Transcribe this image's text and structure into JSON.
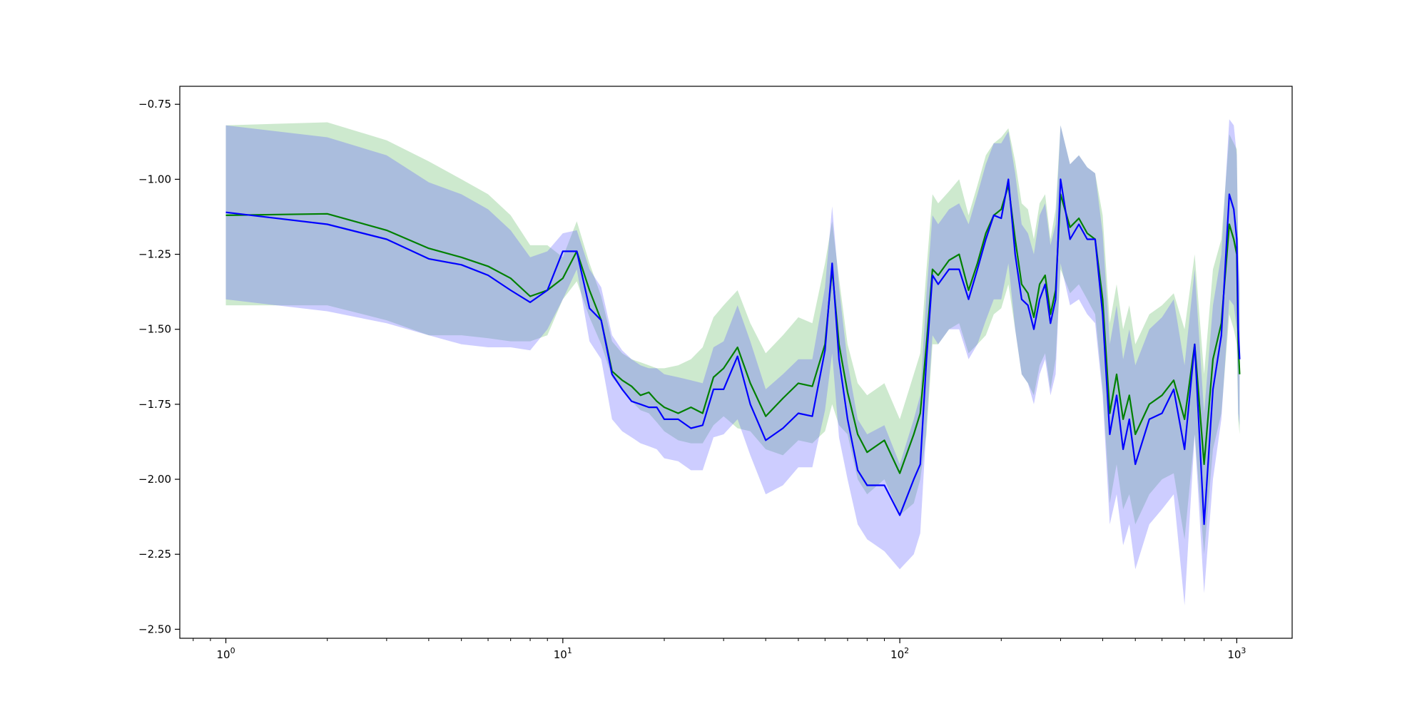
{
  "chart_data": {
    "type": "line",
    "title": "",
    "xlabel": "",
    "ylabel": "",
    "xscale": "log",
    "xlim": [
      0.73,
      1460
    ],
    "ylim": [
      -2.53,
      -0.69
    ],
    "grid": false,
    "legend": "none",
    "x_ticks": [
      {
        "value": 1,
        "base": "10",
        "exp": "0"
      },
      {
        "value": 10,
        "base": "10",
        "exp": "1"
      },
      {
        "value": 100,
        "base": "10",
        "exp": "2"
      },
      {
        "value": 1000,
        "base": "10",
        "exp": "3"
      }
    ],
    "y_ticks": [
      {
        "value": -0.75,
        "label": "−0.75"
      },
      {
        "value": -1.0,
        "label": "−1.00"
      },
      {
        "value": -1.25,
        "label": "−1.25"
      },
      {
        "value": -1.5,
        "label": "−1.50"
      },
      {
        "value": -1.75,
        "label": "−1.75"
      },
      {
        "value": -2.0,
        "label": "−2.00"
      },
      {
        "value": -2.25,
        "label": "−2.25"
      },
      {
        "value": -2.5,
        "label": "−2.50"
      }
    ],
    "series": [
      {
        "color": "#008000",
        "band_color": "#4caf50",
        "band_opacity": 0.28,
        "x": [
          1,
          2,
          3,
          4,
          5,
          6,
          7,
          8,
          9,
          10,
          11,
          12,
          13,
          14,
          15,
          16,
          17,
          18,
          19,
          20,
          22,
          24,
          26,
          28,
          30,
          33,
          36,
          40,
          45,
          50,
          55,
          60,
          63,
          66,
          70,
          75,
          80,
          90,
          100,
          110,
          115,
          120,
          125,
          130,
          140,
          150,
          160,
          170,
          180,
          190,
          200,
          210,
          220,
          230,
          240,
          250,
          260,
          270,
          280,
          290,
          300,
          320,
          340,
          360,
          380,
          400,
          420,
          440,
          460,
          480,
          500,
          550,
          600,
          650,
          700,
          750,
          800,
          850,
          900,
          950,
          980,
          1000,
          1010,
          1020
        ],
        "y": [
          -1.12,
          -1.115,
          -1.17,
          -1.23,
          -1.26,
          -1.29,
          -1.33,
          -1.39,
          -1.37,
          -1.33,
          -1.24,
          -1.37,
          -1.47,
          -1.64,
          -1.67,
          -1.69,
          -1.72,
          -1.71,
          -1.74,
          -1.76,
          -1.78,
          -1.76,
          -1.78,
          -1.66,
          -1.63,
          -1.56,
          -1.68,
          -1.79,
          -1.73,
          -1.68,
          -1.69,
          -1.55,
          -1.3,
          -1.55,
          -1.71,
          -1.85,
          -1.91,
          -1.87,
          -1.98,
          -1.85,
          -1.78,
          -1.55,
          -1.3,
          -1.32,
          -1.27,
          -1.25,
          -1.37,
          -1.28,
          -1.18,
          -1.12,
          -1.1,
          -1.02,
          -1.2,
          -1.35,
          -1.38,
          -1.46,
          -1.35,
          -1.32,
          -1.45,
          -1.37,
          -1.05,
          -1.16,
          -1.13,
          -1.18,
          -1.2,
          -1.4,
          -1.78,
          -1.65,
          -1.8,
          -1.72,
          -1.85,
          -1.75,
          -1.72,
          -1.67,
          -1.8,
          -1.55,
          -1.95,
          -1.6,
          -1.48,
          -1.15,
          -1.2,
          -1.25,
          -1.55,
          -1.65
        ],
        "lower": [
          -1.42,
          -1.42,
          -1.47,
          -1.52,
          -1.52,
          -1.53,
          -1.54,
          -1.54,
          -1.52,
          -1.4,
          -1.34,
          -1.46,
          -1.55,
          -1.66,
          -1.7,
          -1.74,
          -1.77,
          -1.78,
          -1.81,
          -1.84,
          -1.87,
          -1.88,
          -1.88,
          -1.82,
          -1.79,
          -1.83,
          -1.84,
          -1.9,
          -1.92,
          -1.87,
          -1.88,
          -1.84,
          -1.75,
          -1.82,
          -1.85,
          -2.0,
          -2.05,
          -2.0,
          -2.12,
          -2.08,
          -2.0,
          -1.85,
          -1.55,
          -1.55,
          -1.5,
          -1.48,
          -1.58,
          -1.55,
          -1.52,
          -1.45,
          -1.43,
          -1.35,
          -1.5,
          -1.65,
          -1.68,
          -1.72,
          -1.62,
          -1.58,
          -1.7,
          -1.6,
          -1.3,
          -1.38,
          -1.35,
          -1.4,
          -1.45,
          -1.7,
          -2.08,
          -1.95,
          -2.1,
          -2.05,
          -2.15,
          -2.05,
          -2.0,
          -1.98,
          -2.2,
          -1.85,
          -2.25,
          -1.9,
          -1.78,
          -1.45,
          -1.5,
          -1.55,
          -1.8,
          -1.85
        ],
        "upper": [
          -0.82,
          -0.81,
          -0.87,
          -0.94,
          -1.0,
          -1.05,
          -1.12,
          -1.22,
          -1.22,
          -1.26,
          -1.14,
          -1.28,
          -1.39,
          -1.54,
          -1.58,
          -1.6,
          -1.61,
          -1.62,
          -1.63,
          -1.63,
          -1.62,
          -1.6,
          -1.56,
          -1.46,
          -1.42,
          -1.37,
          -1.48,
          -1.58,
          -1.52,
          -1.46,
          -1.48,
          -1.28,
          -1.14,
          -1.33,
          -1.55,
          -1.68,
          -1.72,
          -1.68,
          -1.8,
          -1.65,
          -1.58,
          -1.3,
          -1.05,
          -1.08,
          -1.04,
          -1.0,
          -1.12,
          -1.02,
          -0.92,
          -0.88,
          -0.86,
          -0.83,
          -0.94,
          -1.08,
          -1.1,
          -1.2,
          -1.08,
          -1.05,
          -1.2,
          -1.1,
          -0.82,
          -0.95,
          -0.92,
          -0.96,
          -0.98,
          -1.12,
          -1.48,
          -1.35,
          -1.5,
          -1.42,
          -1.55,
          -1.45,
          -1.42,
          -1.38,
          -1.5,
          -1.25,
          -1.65,
          -1.3,
          -1.2,
          -0.85,
          -0.88,
          -0.9,
          -1.25,
          -1.38
        ]
      },
      {
        "color": "#0000ff",
        "band_color": "#5a5aff",
        "band_opacity": 0.3,
        "x": [
          1,
          2,
          3,
          4,
          5,
          6,
          7,
          8,
          9,
          10,
          11,
          12,
          13,
          14,
          15,
          16,
          17,
          18,
          19,
          20,
          22,
          24,
          26,
          28,
          30,
          33,
          36,
          40,
          45,
          50,
          55,
          60,
          63,
          66,
          70,
          75,
          80,
          90,
          100,
          110,
          115,
          120,
          125,
          130,
          140,
          150,
          160,
          170,
          180,
          190,
          200,
          210,
          220,
          230,
          240,
          250,
          260,
          270,
          280,
          290,
          300,
          320,
          340,
          360,
          380,
          400,
          420,
          440,
          460,
          480,
          500,
          550,
          600,
          650,
          700,
          750,
          800,
          850,
          900,
          950,
          980,
          1000,
          1010,
          1020
        ],
        "y": [
          -1.11,
          -1.15,
          -1.2,
          -1.265,
          -1.285,
          -1.32,
          -1.37,
          -1.41,
          -1.37,
          -1.24,
          -1.24,
          -1.43,
          -1.47,
          -1.65,
          -1.7,
          -1.74,
          -1.75,
          -1.76,
          -1.76,
          -1.8,
          -1.8,
          -1.83,
          -1.82,
          -1.7,
          -1.7,
          -1.59,
          -1.75,
          -1.87,
          -1.83,
          -1.78,
          -1.79,
          -1.57,
          -1.28,
          -1.6,
          -1.8,
          -1.97,
          -2.02,
          -2.02,
          -2.12,
          -2.0,
          -1.95,
          -1.6,
          -1.32,
          -1.35,
          -1.3,
          -1.3,
          -1.4,
          -1.3,
          -1.2,
          -1.12,
          -1.13,
          -1.0,
          -1.25,
          -1.4,
          -1.42,
          -1.5,
          -1.4,
          -1.35,
          -1.48,
          -1.4,
          -1.0,
          -1.2,
          -1.15,
          -1.2,
          -1.2,
          -1.45,
          -1.85,
          -1.72,
          -1.9,
          -1.8,
          -1.95,
          -1.8,
          -1.78,
          -1.7,
          -1.9,
          -1.55,
          -2.15,
          -1.7,
          -1.52,
          -1.05,
          -1.1,
          -1.2,
          -1.5,
          -1.6
        ],
        "lower": [
          -1.4,
          -1.44,
          -1.48,
          -1.52,
          -1.55,
          -1.56,
          -1.56,
          -1.57,
          -1.5,
          -1.4,
          -1.3,
          -1.54,
          -1.6,
          -1.8,
          -1.84,
          -1.86,
          -1.88,
          -1.89,
          -1.9,
          -1.93,
          -1.94,
          -1.97,
          -1.97,
          -1.86,
          -1.85,
          -1.8,
          -1.92,
          -2.05,
          -2.02,
          -1.96,
          -1.96,
          -1.77,
          -1.58,
          -1.86,
          -2.0,
          -2.15,
          -2.2,
          -2.24,
          -2.3,
          -2.25,
          -2.18,
          -1.82,
          -1.52,
          -1.55,
          -1.5,
          -1.5,
          -1.6,
          -1.55,
          -1.47,
          -1.4,
          -1.4,
          -1.28,
          -1.5,
          -1.65,
          -1.68,
          -1.75,
          -1.65,
          -1.6,
          -1.72,
          -1.65,
          -1.28,
          -1.42,
          -1.4,
          -1.45,
          -1.48,
          -1.72,
          -2.15,
          -2.05,
          -2.22,
          -2.15,
          -2.3,
          -2.15,
          -2.1,
          -2.05,
          -2.42,
          -1.85,
          -2.38,
          -2.0,
          -1.8,
          -1.4,
          -1.42,
          -1.5,
          -1.78,
          -1.82
        ],
        "upper": [
          -0.82,
          -0.86,
          -0.92,
          -1.01,
          -1.05,
          -1.1,
          -1.17,
          -1.26,
          -1.24,
          -1.18,
          -1.17,
          -1.3,
          -1.36,
          -1.52,
          -1.57,
          -1.6,
          -1.62,
          -1.63,
          -1.63,
          -1.65,
          -1.66,
          -1.67,
          -1.68,
          -1.56,
          -1.54,
          -1.42,
          -1.54,
          -1.7,
          -1.65,
          -1.6,
          -1.6,
          -1.36,
          -1.09,
          -1.36,
          -1.61,
          -1.8,
          -1.85,
          -1.82,
          -1.95,
          -1.8,
          -1.72,
          -1.38,
          -1.12,
          -1.15,
          -1.1,
          -1.08,
          -1.15,
          -1.05,
          -0.95,
          -0.88,
          -0.88,
          -0.84,
          -0.98,
          -1.15,
          -1.18,
          -1.25,
          -1.12,
          -1.08,
          -1.22,
          -1.15,
          -0.82,
          -0.95,
          -0.92,
          -0.96,
          -0.98,
          -1.18,
          -1.55,
          -1.42,
          -1.6,
          -1.5,
          -1.62,
          -1.5,
          -1.46,
          -1.4,
          -1.62,
          -1.3,
          -1.78,
          -1.42,
          -1.25,
          -0.8,
          -0.82,
          -0.92,
          -1.22,
          -1.35
        ]
      }
    ]
  }
}
